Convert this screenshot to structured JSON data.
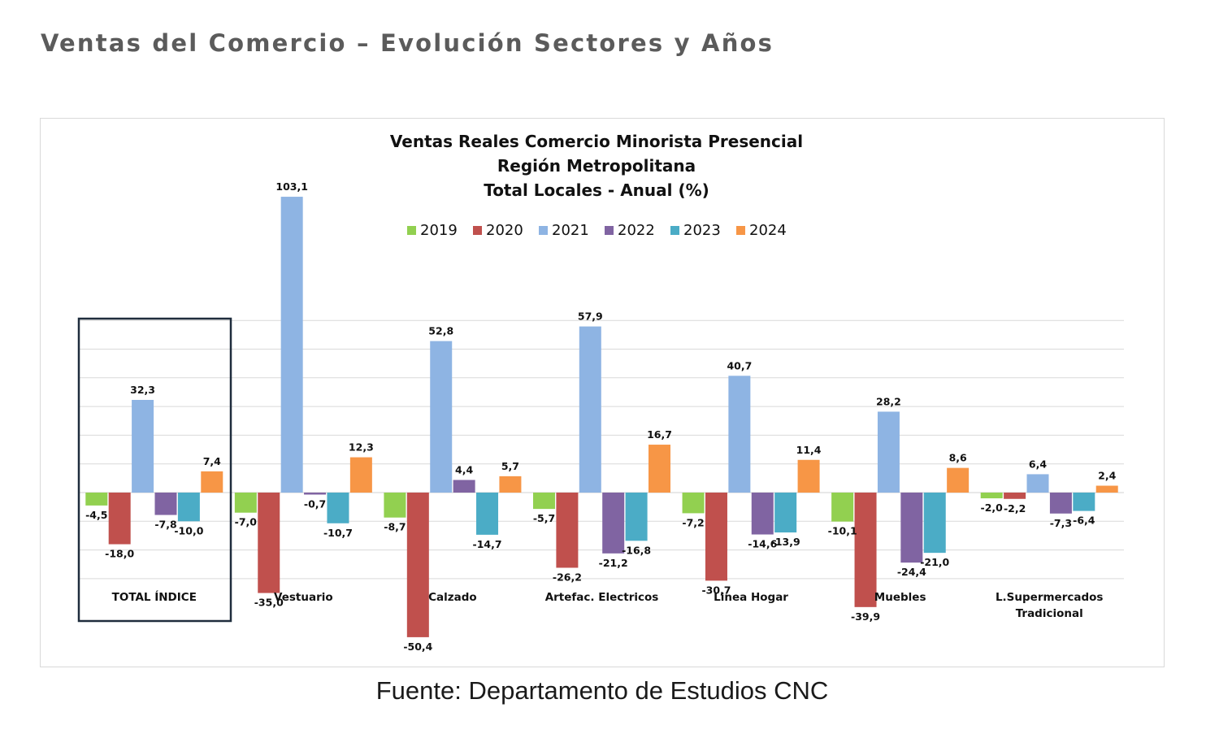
{
  "page": {
    "title": "Ventas del Comercio – Evolución Sectores y Años",
    "source": "Fuente: Departamento de Estudios CNC"
  },
  "colors": {
    "2019": "#92d050",
    "2020": "#c0504d",
    "2021": "#8eb4e3",
    "2022": "#8064a2",
    "2023": "#4bacc6",
    "2024": "#f79646",
    "highlight_box": "#1f2d3d"
  },
  "chart_data": {
    "type": "bar",
    "title_lines": [
      "Ventas Reales Comercio Minorista Presencial",
      "Región Metropolitana",
      "Total Locales - Anual (%)"
    ],
    "legend_position": "top",
    "grid": true,
    "ylim": [
      -60,
      120
    ],
    "highlighted_category": "TOTAL ÍNDICE",
    "categories": [
      [
        "TOTAL ÍNDICE"
      ],
      [
        "Vestuario"
      ],
      [
        "Calzado"
      ],
      [
        "Artefac. Electricos"
      ],
      [
        "Linea Hogar"
      ],
      [
        "Muebles"
      ],
      [
        "L.Supermercados",
        "Tradicional"
      ]
    ],
    "series": [
      {
        "name": "2019",
        "values": [
          -4.5,
          -7.0,
          -8.7,
          -5.7,
          -7.2,
          -10.1,
          -2.0
        ],
        "labels": [
          "-4,5",
          "-7,0",
          "-8,7",
          "-5,7",
          "-7,2",
          "-10,1",
          "-2,0"
        ]
      },
      {
        "name": "2020",
        "values": [
          -18.0,
          -35.0,
          -50.4,
          -26.2,
          -30.7,
          -39.9,
          -2.2
        ],
        "labels": [
          "-18,0",
          "-35,0",
          "-50,4",
          "-26,2",
          "-30,7",
          "-39,9",
          "-2,2"
        ]
      },
      {
        "name": "2021",
        "values": [
          32.3,
          103.1,
          52.8,
          57.9,
          40.7,
          28.2,
          6.4
        ],
        "labels": [
          "32,3",
          "103,1",
          "52,8",
          "57,9",
          "40,7",
          "28,2",
          "6,4"
        ]
      },
      {
        "name": "2022",
        "values": [
          -7.8,
          -0.7,
          4.4,
          -21.2,
          -14.6,
          -24.4,
          -7.3
        ],
        "labels": [
          "-7,8",
          "-0,7",
          "4,4",
          "-21,2",
          "-14,6",
          "-24,4",
          "-7,3"
        ]
      },
      {
        "name": "2023",
        "values": [
          -10.0,
          -10.7,
          -14.7,
          -16.8,
          -13.9,
          -21.0,
          -6.4
        ],
        "labels": [
          "-10,0",
          "-10,7",
          "-14,7",
          "-16,8",
          "-13,9",
          "-21,0",
          "-6,4"
        ]
      },
      {
        "name": "2024",
        "values": [
          7.4,
          12.3,
          5.7,
          16.7,
          11.4,
          8.6,
          2.4
        ],
        "labels": [
          "7,4",
          "12,3",
          "5,7",
          "16,7",
          "11,4",
          "8,6",
          "2,4"
        ]
      }
    ]
  }
}
